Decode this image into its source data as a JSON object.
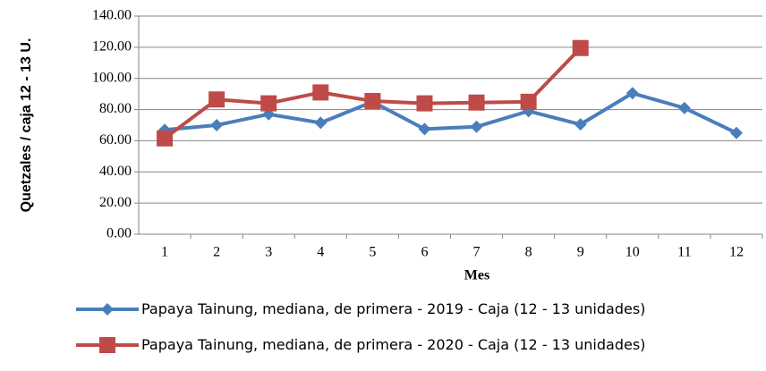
{
  "chart_data": {
    "type": "line",
    "x_label": "Mes",
    "y_label": "Quetzales / caja 12 - 13 U.",
    "categories": [
      "1",
      "2",
      "3",
      "4",
      "5",
      "6",
      "7",
      "8",
      "9",
      "10",
      "11",
      "12"
    ],
    "series": [
      {
        "name": "Papaya Tainung, mediana, de primera - 2019 - Caja (12 - 13 unidades)",
        "color": "#4a7ebb",
        "marker": "diamond",
        "values": [
          67,
          70,
          77,
          71.5,
          85,
          67.5,
          69,
          79,
          70.5,
          90.5,
          81,
          65
        ]
      },
      {
        "name": "Papaya Tainung, mediana, de primera - 2020 - Caja (12 - 13 unidades)",
        "color": "#be4b48",
        "marker": "square",
        "values": [
          61.5,
          86.5,
          84,
          91,
          85.5,
          84,
          84.5,
          85,
          119.5,
          null,
          null,
          null
        ]
      }
    ],
    "ylim": [
      0,
      140
    ],
    "yticks": [
      {
        "value": 0,
        "label": "0.00"
      },
      {
        "value": 20,
        "label": "20.00"
      },
      {
        "value": 40,
        "label": "40.00"
      },
      {
        "value": 60,
        "label": "60.00"
      },
      {
        "value": 80,
        "label": "80.00"
      },
      {
        "value": 100,
        "label": "100.00"
      },
      {
        "value": 120,
        "label": "120.00"
      },
      {
        "value": 140,
        "label": "140.00"
      }
    ],
    "grid": true
  }
}
